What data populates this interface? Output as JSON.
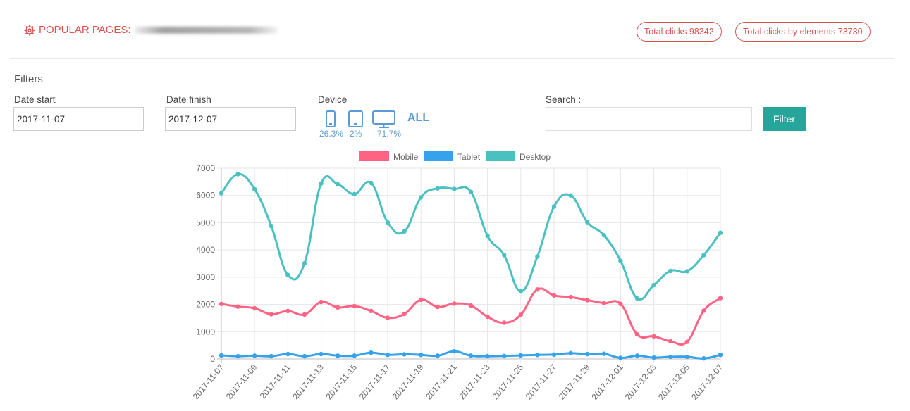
{
  "header": {
    "title": "POPULAR PAGES:",
    "total_clicks": "Total clicks 98342",
    "total_clicks_elements": "Total clicks by elements 73730"
  },
  "filters": {
    "title": "Filters",
    "date_start_label": "Date start",
    "date_start_value": "2017-11-07",
    "date_finish_label": "Date finish",
    "date_finish_value": "2017-12-07",
    "device_label": "Device",
    "devices": [
      {
        "icon": "mobile-icon",
        "pct": "26.3%"
      },
      {
        "icon": "tablet-icon",
        "pct": "2%"
      },
      {
        "icon": "desktop-icon",
        "pct": "71.7%"
      }
    ],
    "all_label": "ALL",
    "search_label": "Search :",
    "search_value": "",
    "filter_button": "Filter"
  },
  "colors": {
    "accent_red": "#d9534f",
    "filter_button": "#26a69a",
    "device_blue": "#5b9bd5",
    "mobile": "#ff6384",
    "tablet": "#36a2eb",
    "desktop": "#4bc0c0"
  },
  "chart_data": {
    "type": "line",
    "title": "",
    "xlabel": "",
    "ylabel": "",
    "ylim": [
      0,
      7000
    ],
    "yticks": [
      0,
      1000,
      2000,
      3000,
      4000,
      5000,
      6000,
      7000
    ],
    "legend_position": "top",
    "grid": true,
    "x": [
      "2017-11-07",
      "2017-11-08",
      "2017-11-09",
      "2017-11-10",
      "2017-11-11",
      "2017-11-12",
      "2017-11-13",
      "2017-11-14",
      "2017-11-15",
      "2017-11-16",
      "2017-11-17",
      "2017-11-18",
      "2017-11-19",
      "2017-11-20",
      "2017-11-21",
      "2017-11-22",
      "2017-11-23",
      "2017-11-24",
      "2017-11-25",
      "2017-11-26",
      "2017-11-27",
      "2017-11-28",
      "2017-11-29",
      "2017-11-30",
      "2017-12-01",
      "2017-12-02",
      "2017-12-03",
      "2017-12-04",
      "2017-12-05",
      "2017-12-06",
      "2017-12-07"
    ],
    "xtick_labels": [
      "2017-11-07",
      "2017-11-09",
      "2017-11-11",
      "2017-11-13",
      "2017-11-15",
      "2017-11-17",
      "2017-11-19",
      "2017-11-21",
      "2017-11-23",
      "2017-11-25",
      "2017-11-27",
      "2017-11-29",
      "2017-12-01",
      "2017-12-03",
      "2017-12-05",
      "2017-12-07"
    ],
    "series": [
      {
        "name": "Mobile",
        "color": "#ff6384",
        "values": [
          2020,
          1920,
          1860,
          1640,
          1760,
          1630,
          2090,
          1890,
          1940,
          1760,
          1510,
          1650,
          2170,
          1910,
          2030,
          1960,
          1550,
          1330,
          1620,
          2550,
          2330,
          2270,
          2160,
          2050,
          2020,
          900,
          830,
          650,
          630,
          1770,
          2230
        ]
      },
      {
        "name": "Tablet",
        "color": "#36a2eb",
        "values": [
          130,
          100,
          120,
          100,
          180,
          100,
          180,
          120,
          120,
          230,
          150,
          170,
          150,
          120,
          280,
          120,
          100,
          110,
          130,
          150,
          160,
          210,
          180,
          190,
          40,
          120,
          50,
          80,
          80,
          20,
          150
        ]
      },
      {
        "name": "Desktop",
        "color": "#4bc0c0",
        "values": [
          6080,
          6780,
          6230,
          4880,
          3080,
          3510,
          6440,
          6410,
          6050,
          6460,
          5010,
          4680,
          5930,
          6260,
          6240,
          6130,
          4520,
          3810,
          2480,
          3760,
          5590,
          6000,
          5020,
          4540,
          3600,
          2220,
          2710,
          3230,
          3220,
          3810,
          4630
        ]
      }
    ]
  }
}
